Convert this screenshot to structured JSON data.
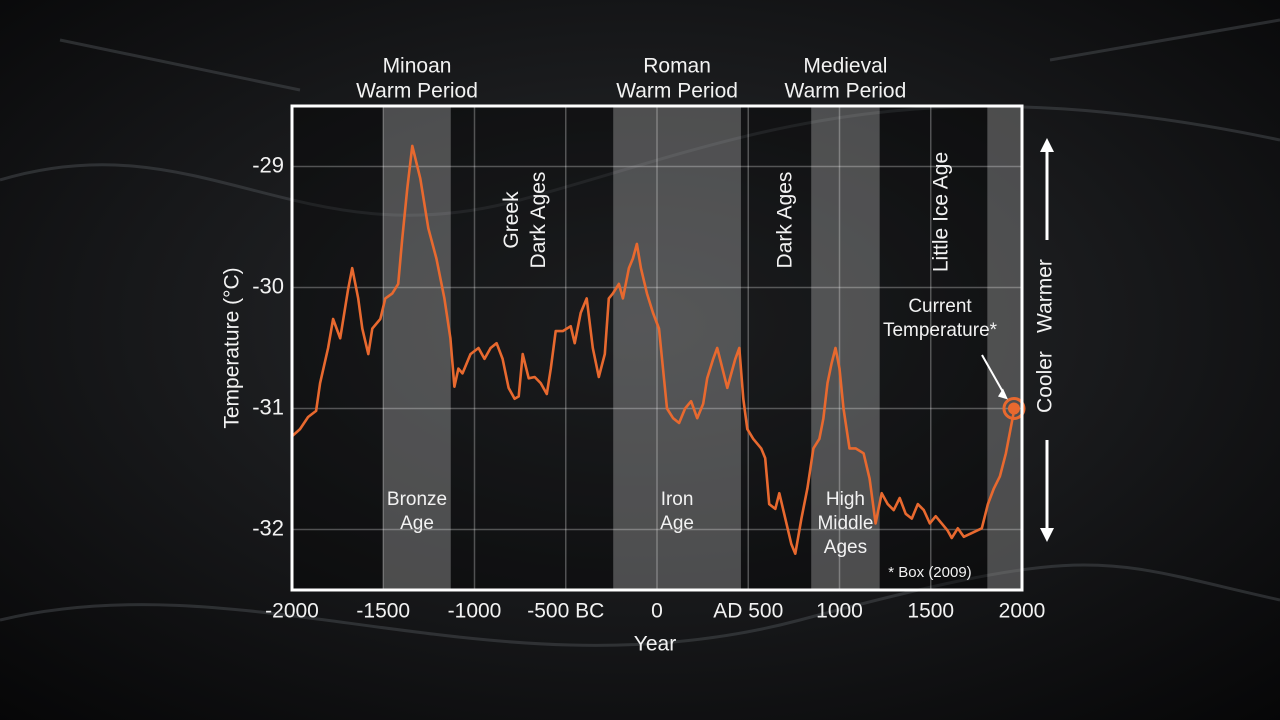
{
  "chart_data": {
    "type": "line",
    "x_label": "Year",
    "y_label": "Temperature (°C)",
    "xlim": [
      -2000,
      2000
    ],
    "ylim": [
      -32.5,
      -28.5
    ],
    "xticks": [
      -2000,
      -1500,
      -1000,
      {
        "value": -500,
        "label": "-500 BC"
      },
      0,
      {
        "value": 500,
        "label": "AD 500"
      },
      1000,
      1500,
      2000
    ],
    "yticks": [
      -32,
      -31,
      -30,
      -29
    ],
    "grid": true,
    "color": "#e8692f",
    "x": [
      -2000,
      -1956,
      -1912,
      -1868,
      -1846,
      -1802,
      -1775,
      -1736,
      -1692,
      -1670,
      -1637,
      -1615,
      -1582,
      -1560,
      -1516,
      -1489,
      -1451,
      -1418,
      -1396,
      -1368,
      -1341,
      -1297,
      -1253,
      -1209,
      -1165,
      -1132,
      -1110,
      -1088,
      -1066,
      -1022,
      -978,
      -945,
      -912,
      -879,
      -846,
      -813,
      -780,
      -758,
      -736,
      -703,
      -670,
      -637,
      -604,
      -582,
      -555,
      -516,
      -473,
      -451,
      -418,
      -385,
      -352,
      -319,
      -286,
      -264,
      -242,
      -209,
      -187,
      -154,
      -132,
      -110,
      -88,
      -55,
      -22,
      11,
      33,
      55,
      88,
      121,
      154,
      187,
      220,
      253,
      275,
      308,
      330,
      352,
      385,
      407,
      429,
      451,
      473,
      495,
      527,
      571,
      593,
      615,
      648,
      670,
      703,
      736,
      758,
      791,
      824,
      857,
      890,
      912,
      934,
      956,
      978,
      1000,
      1022,
      1055,
      1088,
      1132,
      1165,
      1198,
      1231,
      1264,
      1297,
      1330,
      1363,
      1396,
      1429,
      1462,
      1495,
      1527,
      1560,
      1593,
      1615,
      1648,
      1681,
      1725,
      1780,
      1813,
      1846,
      1879,
      1912,
      1956
    ],
    "values": [
      -31.23,
      -31.17,
      -31.07,
      -31.02,
      -30.79,
      -30.5,
      -30.26,
      -30.42,
      -30.01,
      -29.84,
      -30.09,
      -30.34,
      -30.55,
      -30.34,
      -30.26,
      -30.09,
      -30.05,
      -29.97,
      -29.6,
      -29.18,
      -28.83,
      -29.1,
      -29.51,
      -29.76,
      -30.09,
      -30.42,
      -30.82,
      -30.67,
      -30.71,
      -30.55,
      -30.5,
      -30.59,
      -30.5,
      -30.46,
      -30.59,
      -30.83,
      -30.92,
      -30.9,
      -30.55,
      -30.75,
      -30.74,
      -30.79,
      -30.88,
      -30.67,
      -30.36,
      -30.36,
      -30.32,
      -30.46,
      -30.21,
      -30.09,
      -30.5,
      -30.74,
      -30.55,
      -30.09,
      -30.05,
      -29.97,
      -30.09,
      -29.84,
      -29.76,
      -29.64,
      -29.84,
      -30.05,
      -30.21,
      -30.34,
      -30.67,
      -31.0,
      -31.08,
      -31.12,
      -31.0,
      -30.94,
      -31.08,
      -30.96,
      -30.75,
      -30.59,
      -30.5,
      -30.63,
      -30.83,
      -30.71,
      -30.59,
      -30.5,
      -30.92,
      -31.17,
      -31.25,
      -31.33,
      -31.41,
      -31.79,
      -31.83,
      -31.7,
      -31.91,
      -32.12,
      -32.2,
      -31.91,
      -31.66,
      -31.33,
      -31.25,
      -31.08,
      -30.79,
      -30.63,
      -30.5,
      -30.67,
      -31.0,
      -31.33,
      -31.33,
      -31.37,
      -31.58,
      -31.95,
      -31.7,
      -31.79,
      -31.84,
      -31.74,
      -31.87,
      -31.91,
      -31.79,
      -31.84,
      -31.95,
      -31.89,
      -31.95,
      -32.01,
      -32.07,
      -31.99,
      -32.06,
      -32.03,
      -31.99,
      -31.79,
      -31.66,
      -31.56,
      -31.37,
      -31.02
    ],
    "shaded_periods": [
      {
        "start": -1500,
        "end": -1130,
        "top_label": [
          "Minoan",
          "Warm Period"
        ],
        "bottom_label": [
          "Bronze",
          "Age"
        ]
      },
      {
        "start": -240,
        "end": 460,
        "top_label": [
          "Roman",
          "Warm Period"
        ],
        "bottom_label": [
          "Iron",
          "Age"
        ]
      },
      {
        "start": 845,
        "end": 1220,
        "top_label": [
          "Medieval",
          "Warm Period"
        ],
        "bottom_label": [
          "High",
          "Middle",
          "Ages"
        ]
      },
      {
        "start": 1810,
        "end": 2000
      }
    ],
    "vertical_labels": [
      [
        "Greek",
        "Dark Ages"
      ],
      [
        "Dark Ages"
      ],
      [
        "Little Ice Age"
      ]
    ],
    "annotation": {
      "text": [
        "Current",
        "Temperature*"
      ],
      "x": 1956,
      "y": -31.0
    },
    "footnote": "* Box (2009)",
    "side_labels": [
      "Cooler",
      "Warmer"
    ]
  }
}
